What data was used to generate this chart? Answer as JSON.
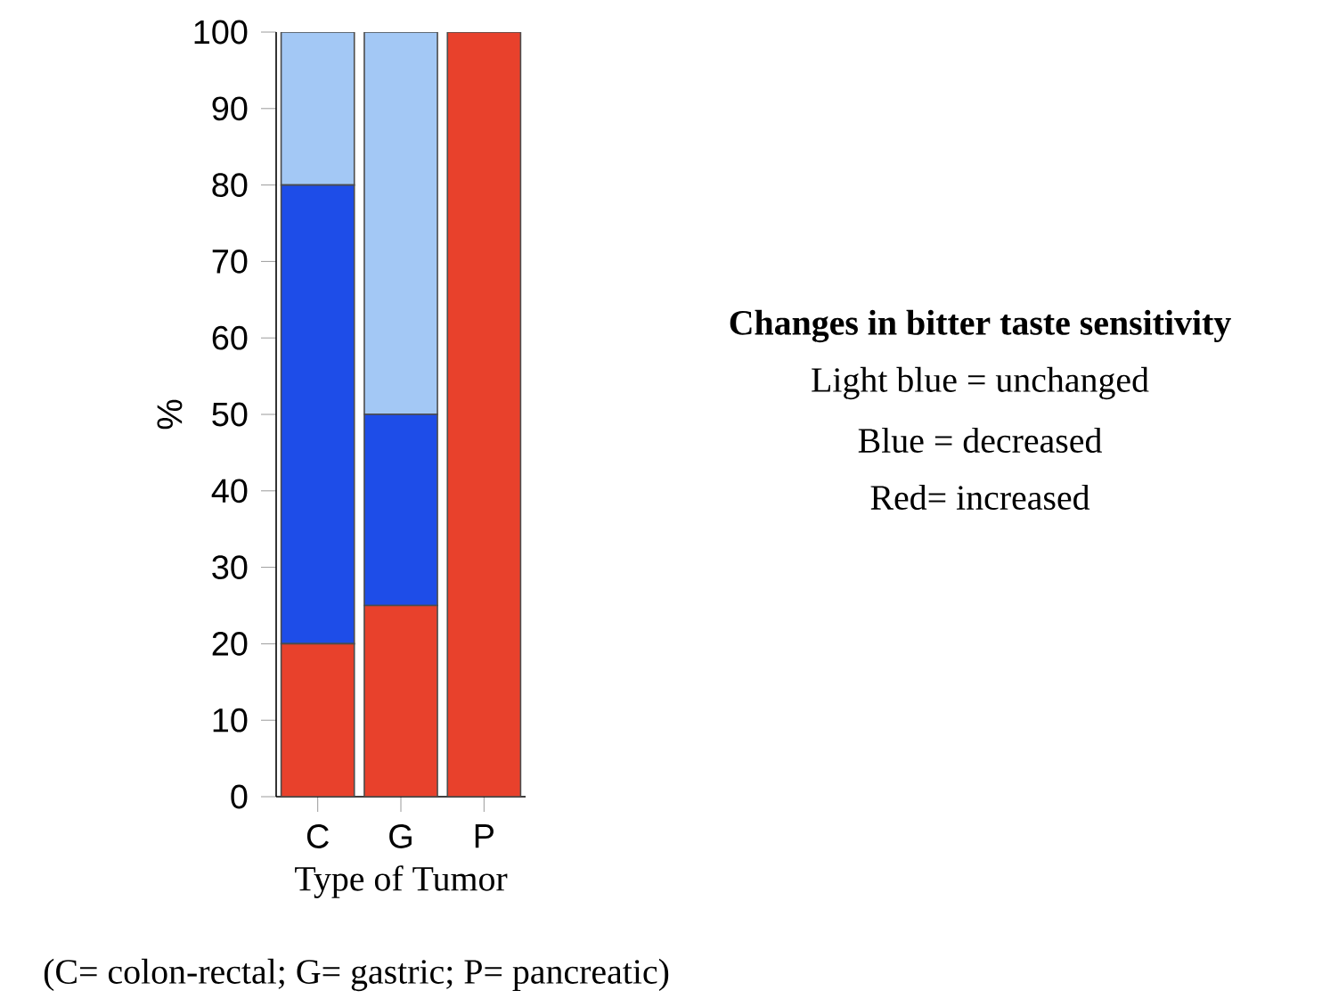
{
  "chart_data": {
    "type": "bar",
    "stacked": true,
    "categories": [
      "C",
      "G",
      "P"
    ],
    "series": [
      {
        "color": "#e8412c",
        "values": [
          20,
          25,
          100
        ]
      },
      {
        "color": "#1e4de8",
        "values": [
          60,
          25,
          0
        ]
      },
      {
        "color": "#a3c8f5",
        "values": [
          20,
          50,
          0
        ]
      }
    ],
    "ylim": [
      0,
      100
    ],
    "yticks": [
      0,
      10,
      20,
      30,
      40,
      50,
      60,
      70,
      80,
      90,
      100
    ],
    "ylabel": "%",
    "xlabel": "Type of Tumor",
    "legend_title": "Changes in bitter taste sensitivity",
    "annotations": [
      "Light blue = unchanged",
      "Blue = decreased",
      "Red= increased",
      "(C= colon-rectal; G= gastric; P= pancreatic)"
    ]
  }
}
